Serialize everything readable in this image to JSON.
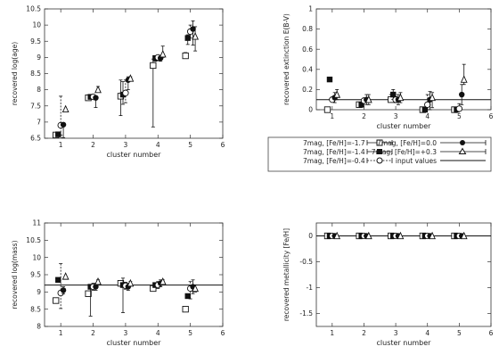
{
  "legend": {
    "entries": [
      {
        "label": "7mag, [Fe/H]=-1.7",
        "marker": "open-square"
      },
      {
        "label": "7mag, [Fe/H]=0.0",
        "marker": "filled-circle"
      },
      {
        "label": "7mag, [Fe/H]=-1.4",
        "marker": "filled-square"
      },
      {
        "label": "7mag, [Fe/H]=+0.3",
        "marker": "open-triangle"
      },
      {
        "label": "7mag, [Fe/H]=-0.4",
        "marker": "open-circle"
      },
      {
        "label": "input values",
        "marker": "line"
      }
    ]
  },
  "chart_data": [
    {
      "type": "scatter",
      "xlabel": "cluster number",
      "ylabel": "recovered log(age)",
      "xlim": [
        0.5,
        6
      ],
      "ylim": [
        6.5,
        10.5
      ],
      "xticks": [
        1,
        2,
        3,
        4,
        5,
        6
      ],
      "yticks": [
        6.5,
        7,
        7.5,
        8,
        8.5,
        9,
        9.5,
        10,
        10.5
      ],
      "ytick_labels": [
        "6.5",
        "7",
        "7.5",
        "8",
        "8.5",
        "9",
        "9.5",
        "10",
        "10.5"
      ],
      "input_values": [],
      "series": [
        {
          "name": "7mag, [Fe/H]=-1.7",
          "values": [
            6.6,
            7.75,
            7.8,
            8.75,
            9.05
          ],
          "err_low": [
            0.0,
            0.0,
            0.6,
            1.9,
            0.05
          ],
          "err_high": [
            0.0,
            0.05,
            0.5,
            0.2,
            0.1
          ]
        },
        {
          "name": "7mag, [Fe/H]=-1.4",
          "values": [
            6.62,
            7.78,
            7.85,
            8.98,
            9.6
          ],
          "err_low": [
            0.0,
            0.05,
            0.3,
            0.1,
            0.2
          ],
          "err_high": [
            0.0,
            0.05,
            0.4,
            0.05,
            0.1
          ]
        },
        {
          "name": "7mag, [Fe/H]=-0.4",
          "values": [
            6.9,
            7.78,
            7.9,
            9.0,
            9.8
          ],
          "err_low": [
            0.3,
            0.05,
            0.3,
            0.1,
            0.2
          ],
          "err_high": [
            0.9,
            0.05,
            0.4,
            0.05,
            0.2
          ]
        },
        {
          "name": "7mag, [Fe/H]=0.0",
          "values": [
            6.92,
            7.75,
            8.3,
            8.98,
            9.88
          ],
          "err_low": [
            0.4,
            0.3,
            0.3,
            0.1,
            0.5
          ],
          "err_high": [
            0.0,
            0.05,
            0.1,
            0.05,
            0.25
          ]
        },
        {
          "name": "7mag, [Fe/H]=+0.3",
          "values": [
            7.4,
            8.0,
            8.35,
            9.1,
            9.65
          ],
          "err_low": [
            0.0,
            0.05,
            0.05,
            0.1,
            0.45
          ],
          "err_high": [
            0.0,
            0.1,
            0.05,
            0.25,
            0.3
          ]
        }
      ]
    },
    {
      "type": "scatter",
      "xlabel": "cluster number",
      "ylabel": "recovered extinction E(B-V)",
      "xlim": [
        0.5,
        6
      ],
      "ylim": [
        0,
        1
      ],
      "xticks": [
        1,
        2,
        3,
        4,
        5,
        6
      ],
      "yticks": [
        0,
        0.2,
        0.4,
        0.6,
        0.8,
        1
      ],
      "ytick_labels": [
        "0",
        "0.2",
        "0.4",
        "0.6",
        "0.8",
        "1"
      ],
      "input_values": [
        0.1
      ],
      "series": [
        {
          "name": "7mag, [Fe/H]=-1.7",
          "values": [
            0.0,
            0.05,
            0.1,
            0.0,
            0.0
          ],
          "err_low": [
            0.0,
            0.0,
            0.0,
            0.0,
            0.0
          ],
          "err_high": [
            0.0,
            0.0,
            0.05,
            0.0,
            0.0
          ]
        },
        {
          "name": "7mag, [Fe/H]=-1.4",
          "values": [
            0.3,
            0.05,
            0.15,
            0.0,
            0.0
          ],
          "err_low": [
            0.0,
            0.0,
            0.05,
            0.0,
            0.0
          ],
          "err_high": [
            0.0,
            0.0,
            0.05,
            0.0,
            0.0
          ]
        },
        {
          "name": "7mag, [Fe/H]=-0.4",
          "values": [
            0.1,
            0.09,
            0.1,
            0.05,
            0.01
          ],
          "err_low": [
            0.02,
            0.02,
            0.03,
            0.05,
            0.0
          ],
          "err_high": [
            0.02,
            0.02,
            0.03,
            0.1,
            0.05
          ]
        },
        {
          "name": "7mag, [Fe/H]=0.0",
          "values": [
            0.12,
            0.1,
            0.1,
            0.1,
            0.15
          ],
          "err_low": [
            0.05,
            0.05,
            0.05,
            0.1,
            0.1
          ],
          "err_high": [
            0.05,
            0.05,
            0.05,
            0.08,
            0.1
          ]
        },
        {
          "name": "7mag, [Fe/H]=+0.3",
          "values": [
            0.15,
            0.1,
            0.12,
            0.12,
            0.3
          ],
          "err_low": [
            0.05,
            0.05,
            0.05,
            0.1,
            0.05
          ],
          "err_high": [
            0.05,
            0.05,
            0.05,
            0.05,
            0.15
          ]
        }
      ]
    },
    {
      "type": "scatter",
      "xlabel": "cluster number",
      "ylabel": "recovered log(mass)",
      "xlim": [
        0.5,
        6
      ],
      "ylim": [
        8,
        11
      ],
      "xticks": [
        1,
        2,
        3,
        4,
        5,
        6
      ],
      "yticks": [
        8,
        8.5,
        9,
        9.5,
        10,
        10.5,
        11
      ],
      "ytick_labels": [
        "8",
        "8.5",
        "9",
        "9.5",
        "10",
        "10.5",
        "11"
      ],
      "input_values": [
        9.2
      ],
      "series": [
        {
          "name": "7mag, [Fe/H]=-1.7",
          "values": [
            8.75,
            8.95,
            9.25,
            9.1,
            8.5
          ],
          "err_low": [
            0.0,
            0.0,
            0.0,
            0.0,
            0.0
          ],
          "err_high": [
            0.0,
            0.0,
            0.0,
            0.0,
            0.0
          ]
        },
        {
          "name": "7mag, [Fe/H]=-1.4",
          "values": [
            9.35,
            9.15,
            9.2,
            9.2,
            8.88
          ],
          "err_low": [
            0.0,
            0.85,
            0.8,
            0.0,
            0.0
          ],
          "err_high": [
            0.0,
            0.0,
            0.2,
            0.0,
            0.0
          ]
        },
        {
          "name": "7mag, [Fe/H]=-0.4",
          "values": [
            8.97,
            9.15,
            9.18,
            9.2,
            9.1
          ],
          "err_low": [
            0.45,
            0.1,
            0.1,
            0.1,
            0.3
          ],
          "err_high": [
            0.85,
            0.1,
            0.1,
            0.1,
            0.2
          ]
        },
        {
          "name": "7mag, [Fe/H]=0.0",
          "values": [
            9.05,
            9.15,
            9.15,
            9.25,
            9.15
          ],
          "err_low": [
            0.1,
            0.1,
            0.1,
            0.1,
            0.2
          ],
          "err_high": [
            0.1,
            0.1,
            0.1,
            0.1,
            0.2
          ]
        },
        {
          "name": "7mag, [Fe/H]=+0.3",
          "values": [
            9.45,
            9.3,
            9.25,
            9.3,
            9.1
          ],
          "err_low": [
            0.0,
            0.05,
            0.05,
            0.05,
            0.1
          ],
          "err_high": [
            0.0,
            0.05,
            0.05,
            0.05,
            0.1
          ]
        }
      ]
    },
    {
      "type": "scatter",
      "xlabel": "cluster number",
      "ylabel": "recovered metallicity [Fe/H]",
      "xlim": [
        0.5,
        6
      ],
      "ylim": [
        -1.75,
        0.25
      ],
      "xticks": [
        1,
        2,
        3,
        4,
        5,
        6
      ],
      "yticks": [
        -1.5,
        -1,
        -0.5,
        0
      ],
      "ytick_labels": [
        "-1.5",
        "-1",
        "-0.5",
        "0"
      ],
      "input_values": [
        0.0
      ],
      "series": [
        {
          "name": "7mag, [Fe/H]=-1.7",
          "values": [
            0,
            0,
            0,
            0,
            0
          ],
          "err_low": [
            0,
            0,
            0,
            0,
            0
          ],
          "err_high": [
            0,
            0,
            0,
            0,
            0
          ]
        },
        {
          "name": "7mag, [Fe/H]=-1.4",
          "values": [
            0,
            0,
            0,
            0,
            0
          ],
          "err_low": [
            0,
            0,
            0,
            0,
            0
          ],
          "err_high": [
            0,
            0,
            0,
            0,
            0
          ]
        },
        {
          "name": "7mag, [Fe/H]=-0.4",
          "values": [
            0,
            0,
            0,
            0,
            0
          ],
          "err_low": [
            0,
            0,
            0,
            0,
            0
          ],
          "err_high": [
            0,
            0,
            0,
            0,
            0
          ]
        },
        {
          "name": "7mag, [Fe/H]=0.0",
          "values": [
            0,
            0,
            0,
            0,
            0
          ],
          "err_low": [
            0,
            0,
            0,
            0,
            0
          ],
          "err_high": [
            0,
            0,
            0,
            0,
            0
          ]
        },
        {
          "name": "7mag, [Fe/H]=+0.3",
          "values": [
            0,
            0,
            0,
            0,
            0
          ],
          "err_low": [
            0,
            0,
            0,
            0,
            0
          ],
          "err_high": [
            0,
            0,
            0,
            0,
            0
          ]
        }
      ]
    }
  ]
}
